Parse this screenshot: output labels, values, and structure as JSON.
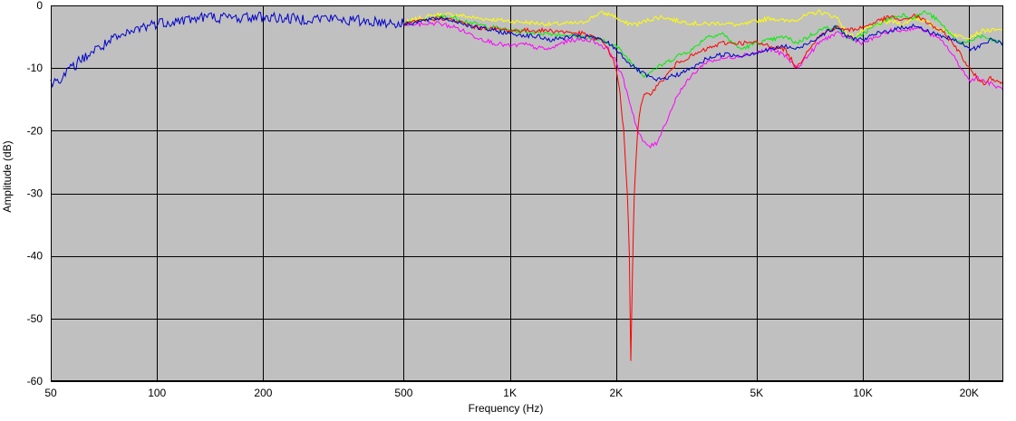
{
  "chart_data": {
    "type": "line",
    "xlabel": "Frequency (Hz)",
    "ylabel": "Amplitude (dB)",
    "x_scale": "log",
    "xlim": [
      50,
      25000
    ],
    "ylim": [
      -60,
      0
    ],
    "grid": true,
    "background": "#c0c0c0",
    "x_ticks": [
      {
        "value": 50,
        "label": "50"
      },
      {
        "value": 100,
        "label": "100"
      },
      {
        "value": 200,
        "label": "200"
      },
      {
        "value": 500,
        "label": "500"
      },
      {
        "value": 1000,
        "label": "1K"
      },
      {
        "value": 2000,
        "label": "2K"
      },
      {
        "value": 5000,
        "label": "5K"
      },
      {
        "value": 10000,
        "label": "10K"
      },
      {
        "value": 20000,
        "label": "20K"
      }
    ],
    "y_ticks": [
      {
        "value": 0,
        "label": "0"
      },
      {
        "value": -10,
        "label": "-10"
      },
      {
        "value": -20,
        "label": "-20"
      },
      {
        "value": -30,
        "label": "-30"
      },
      {
        "value": -40,
        "label": "-40"
      },
      {
        "value": -50,
        "label": "-50"
      },
      {
        "value": -60,
        "label": "-60"
      }
    ],
    "series": [
      {
        "color": "#ffff00",
        "points": [
          [
            500,
            -2.8
          ],
          [
            560,
            -2
          ],
          [
            620,
            -1.5
          ],
          [
            700,
            -1.5
          ],
          [
            800,
            -2
          ],
          [
            1000,
            -2.5
          ],
          [
            1300,
            -3
          ],
          [
            1600,
            -2.8
          ],
          [
            1800,
            -1.2
          ],
          [
            1950,
            -1.5
          ],
          [
            2100,
            -2.8
          ],
          [
            2300,
            -3
          ],
          [
            2500,
            -2.2
          ],
          [
            2700,
            -1.8
          ],
          [
            3000,
            -2.5
          ],
          [
            3500,
            -3
          ],
          [
            4000,
            -2.8
          ],
          [
            4500,
            -3.2
          ],
          [
            5000,
            -2.5
          ],
          [
            5500,
            -2
          ],
          [
            6000,
            -2.5
          ],
          [
            6500,
            -2.2
          ],
          [
            7000,
            -1.5
          ],
          [
            7500,
            -1
          ],
          [
            8000,
            -1.5
          ],
          [
            8500,
            -2
          ],
          [
            9000,
            -4.5
          ],
          [
            9500,
            -5
          ],
          [
            10000,
            -4
          ],
          [
            11000,
            -3
          ],
          [
            12000,
            -2.5
          ],
          [
            13000,
            -3
          ],
          [
            14000,
            -2
          ],
          [
            15000,
            -2.5
          ],
          [
            16000,
            -3.5
          ],
          [
            17000,
            -4
          ],
          [
            18000,
            -4.5
          ],
          [
            19000,
            -5
          ],
          [
            20000,
            -5
          ],
          [
            21000,
            -4.5
          ],
          [
            22000,
            -4
          ],
          [
            23000,
            -4
          ],
          [
            25000,
            -4
          ]
        ]
      },
      {
        "color": "#00ee00",
        "points": [
          [
            500,
            -3
          ],
          [
            560,
            -2.5
          ],
          [
            640,
            -1.8
          ],
          [
            700,
            -2
          ],
          [
            800,
            -3
          ],
          [
            1000,
            -4
          ],
          [
            1300,
            -4.5
          ],
          [
            1600,
            -5
          ],
          [
            1800,
            -5.5
          ],
          [
            2000,
            -6.5
          ],
          [
            2200,
            -9
          ],
          [
            2400,
            -11.2
          ],
          [
            2600,
            -10
          ],
          [
            2800,
            -9
          ],
          [
            3000,
            -8
          ],
          [
            3300,
            -7
          ],
          [
            3600,
            -5
          ],
          [
            4000,
            -4.5
          ],
          [
            4500,
            -7
          ],
          [
            5000,
            -6
          ],
          [
            5500,
            -5.5
          ],
          [
            6000,
            -5
          ],
          [
            6500,
            -6
          ],
          [
            7000,
            -5
          ],
          [
            7500,
            -4
          ],
          [
            8000,
            -3.5
          ],
          [
            8500,
            -3.5
          ],
          [
            9000,
            -5
          ],
          [
            9500,
            -5.5
          ],
          [
            10000,
            -4.5
          ],
          [
            11000,
            -3
          ],
          [
            12000,
            -2
          ],
          [
            13000,
            -1.5
          ],
          [
            14000,
            -2
          ],
          [
            15000,
            -1
          ],
          [
            16000,
            -2
          ],
          [
            17000,
            -3.5
          ],
          [
            18000,
            -5
          ],
          [
            19000,
            -6
          ],
          [
            20000,
            -6
          ],
          [
            21000,
            -5
          ],
          [
            22000,
            -5
          ],
          [
            23000,
            -5.5
          ],
          [
            25000,
            -6
          ]
        ]
      },
      {
        "color": "#ff00ff",
        "points": [
          [
            500,
            -3
          ],
          [
            560,
            -3
          ],
          [
            620,
            -2.8
          ],
          [
            700,
            -3.5
          ],
          [
            800,
            -5
          ],
          [
            900,
            -6
          ],
          [
            1000,
            -6.5
          ],
          [
            1100,
            -6.2
          ],
          [
            1200,
            -6.8
          ],
          [
            1300,
            -7
          ],
          [
            1400,
            -6
          ],
          [
            1500,
            -5.5
          ],
          [
            1700,
            -5.5
          ],
          [
            1900,
            -7
          ],
          [
            2000,
            -9
          ],
          [
            2100,
            -12
          ],
          [
            2200,
            -16
          ],
          [
            2300,
            -20
          ],
          [
            2400,
            -22
          ],
          [
            2500,
            -22.5
          ],
          [
            2600,
            -22
          ],
          [
            2800,
            -18
          ],
          [
            3000,
            -14
          ],
          [
            3300,
            -11
          ],
          [
            3600,
            -9
          ],
          [
            4000,
            -8.5
          ],
          [
            4500,
            -8
          ],
          [
            5000,
            -7.5
          ],
          [
            5500,
            -7
          ],
          [
            6000,
            -8
          ],
          [
            6500,
            -10
          ],
          [
            7000,
            -8
          ],
          [
            7500,
            -6
          ],
          [
            8000,
            -5
          ],
          [
            8500,
            -4.5
          ],
          [
            9000,
            -5
          ],
          [
            10000,
            -6
          ],
          [
            11000,
            -5
          ],
          [
            12000,
            -4
          ],
          [
            13000,
            -4
          ],
          [
            14000,
            -3.5
          ],
          [
            15000,
            -4
          ],
          [
            16000,
            -5
          ],
          [
            17000,
            -6
          ],
          [
            18000,
            -8
          ],
          [
            19000,
            -10
          ],
          [
            20000,
            -12
          ],
          [
            21000,
            -11.5
          ],
          [
            22000,
            -12
          ],
          [
            23000,
            -12.5
          ],
          [
            25000,
            -13.5
          ]
        ]
      },
      {
        "color": "#ff0000",
        "points": [
          [
            500,
            -3
          ],
          [
            560,
            -2.5
          ],
          [
            640,
            -2
          ],
          [
            700,
            -2.5
          ],
          [
            800,
            -3.5
          ],
          [
            1000,
            -4
          ],
          [
            1300,
            -4
          ],
          [
            1600,
            -4.5
          ],
          [
            1800,
            -5.5
          ],
          [
            1900,
            -7
          ],
          [
            2000,
            -10
          ],
          [
            2050,
            -14
          ],
          [
            2100,
            -20
          ],
          [
            2150,
            -30
          ],
          [
            2180,
            -40
          ],
          [
            2200,
            -57
          ],
          [
            2220,
            -45
          ],
          [
            2250,
            -30
          ],
          [
            2300,
            -20
          ],
          [
            2350,
            -16
          ],
          [
            2400,
            -14.5
          ],
          [
            2500,
            -14
          ],
          [
            2600,
            -13
          ],
          [
            2800,
            -11
          ],
          [
            3000,
            -9
          ],
          [
            3300,
            -8
          ],
          [
            3600,
            -7
          ],
          [
            4000,
            -6
          ],
          [
            4500,
            -6
          ],
          [
            5000,
            -6
          ],
          [
            5500,
            -6.5
          ],
          [
            6000,
            -7
          ],
          [
            6500,
            -10
          ],
          [
            7000,
            -7
          ],
          [
            7500,
            -5
          ],
          [
            8000,
            -4
          ],
          [
            8500,
            -3.5
          ],
          [
            9000,
            -4
          ],
          [
            10000,
            -3.5
          ],
          [
            11000,
            -2.5
          ],
          [
            12000,
            -1.8
          ],
          [
            13000,
            -2.5
          ],
          [
            14000,
            -1.5
          ],
          [
            15000,
            -2.5
          ],
          [
            16000,
            -3.5
          ],
          [
            17000,
            -4.5
          ],
          [
            18000,
            -6
          ],
          [
            19000,
            -8
          ],
          [
            20000,
            -10
          ],
          [
            21000,
            -11.5
          ],
          [
            22000,
            -12.5
          ],
          [
            23000,
            -11.5
          ],
          [
            24000,
            -12
          ],
          [
            25000,
            -12.5
          ]
        ]
      },
      {
        "color": "#0000cc",
        "points": [
          [
            50,
            -12.5
          ],
          [
            55,
            -11
          ],
          [
            60,
            -9
          ],
          [
            65,
            -7.5
          ],
          [
            70,
            -6.5
          ],
          [
            75,
            -5.5
          ],
          [
            80,
            -5
          ],
          [
            90,
            -3.5
          ],
          [
            100,
            -2.8
          ],
          [
            120,
            -2.3
          ],
          [
            140,
            -1.8
          ],
          [
            160,
            -2
          ],
          [
            180,
            -1.9
          ],
          [
            200,
            -1.8
          ],
          [
            250,
            -2.2
          ],
          [
            300,
            -2
          ],
          [
            350,
            -2.4
          ],
          [
            400,
            -2.5
          ],
          [
            450,
            -2.7
          ],
          [
            500,
            -3
          ],
          [
            560,
            -2.5
          ],
          [
            640,
            -2
          ],
          [
            700,
            -2.5
          ],
          [
            800,
            -3.5
          ],
          [
            1000,
            -4.5
          ],
          [
            1200,
            -5
          ],
          [
            1300,
            -5.5
          ],
          [
            1500,
            -5
          ],
          [
            1700,
            -5
          ],
          [
            1900,
            -6
          ],
          [
            2000,
            -7
          ],
          [
            2200,
            -9.5
          ],
          [
            2400,
            -11
          ],
          [
            2600,
            -12
          ],
          [
            2800,
            -11.5
          ],
          [
            3000,
            -11
          ],
          [
            3300,
            -10
          ],
          [
            3600,
            -8.5
          ],
          [
            4000,
            -7.8
          ],
          [
            4500,
            -8
          ],
          [
            5000,
            -7.5
          ],
          [
            5500,
            -7
          ],
          [
            6000,
            -6.5
          ],
          [
            6500,
            -7
          ],
          [
            7000,
            -6
          ],
          [
            7500,
            -5
          ],
          [
            8000,
            -4
          ],
          [
            8500,
            -3.5
          ],
          [
            9000,
            -5
          ],
          [
            10000,
            -5.5
          ],
          [
            11000,
            -4.5
          ],
          [
            12000,
            -4
          ],
          [
            13000,
            -3.5
          ],
          [
            14000,
            -3.2
          ],
          [
            15000,
            -4
          ],
          [
            16000,
            -4.5
          ],
          [
            17000,
            -5
          ],
          [
            18000,
            -5.5
          ],
          [
            19000,
            -6
          ],
          [
            20000,
            -7
          ],
          [
            21000,
            -6.8
          ],
          [
            22000,
            -6
          ],
          [
            23000,
            -5.5
          ],
          [
            25000,
            -6
          ]
        ]
      }
    ]
  }
}
